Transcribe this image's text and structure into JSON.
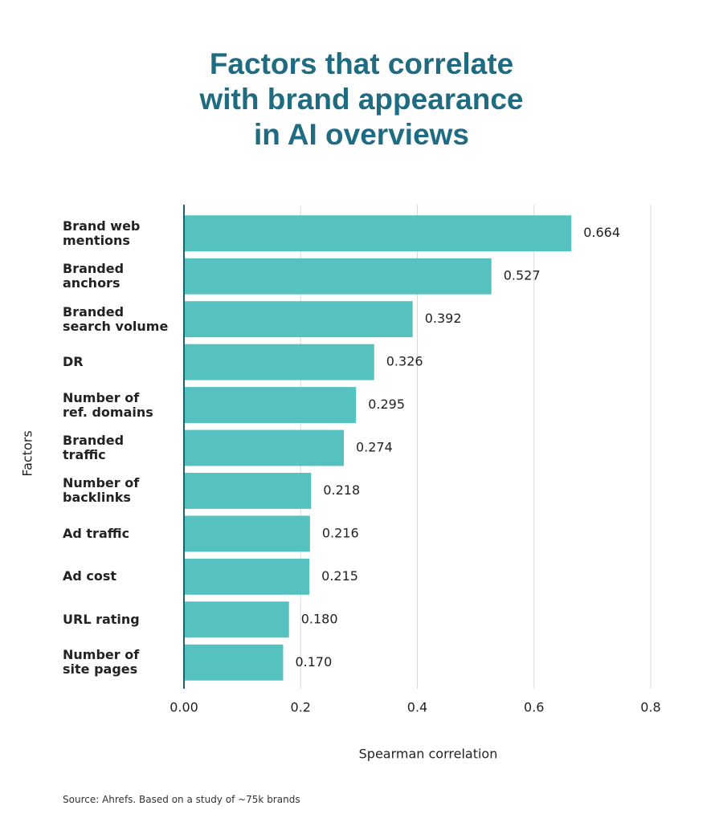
{
  "chart_data": {
    "type": "hbar",
    "title": "Factors that correlate\nwith brand appearance\nin AI overviews",
    "categories": [
      "Brand web\nmentions",
      "Branded\nanchors",
      "Branded\nsearch volume",
      "DR",
      "Number of\nref. domains",
      "Branded\ntraffic",
      "Number of\nbacklinks",
      "Ad traffic",
      "Ad cost",
      "URL rating",
      "Number of\nsite pages"
    ],
    "values": [
      0.664,
      0.527,
      0.392,
      0.326,
      0.295,
      0.274,
      0.218,
      0.216,
      0.215,
      0.18,
      0.17
    ],
    "value_labels": [
      "0.664",
      "0.527",
      "0.392",
      "0.326",
      "0.295",
      "0.274",
      "0.218",
      "0.216",
      "0.215",
      "0.180",
      "0.170"
    ],
    "color": "#56c2bf",
    "xlim": [
      0,
      0.8
    ],
    "xticks": [
      {
        "value": 0,
        "label": "0.00"
      },
      0.2,
      0.4,
      0.6,
      0.8
    ],
    "grid": true,
    "xlabel": "Spearman correlation",
    "ylabel": "Factors",
    "source": "Source: Ahrefs. Based on a study of ~75k brands"
  }
}
